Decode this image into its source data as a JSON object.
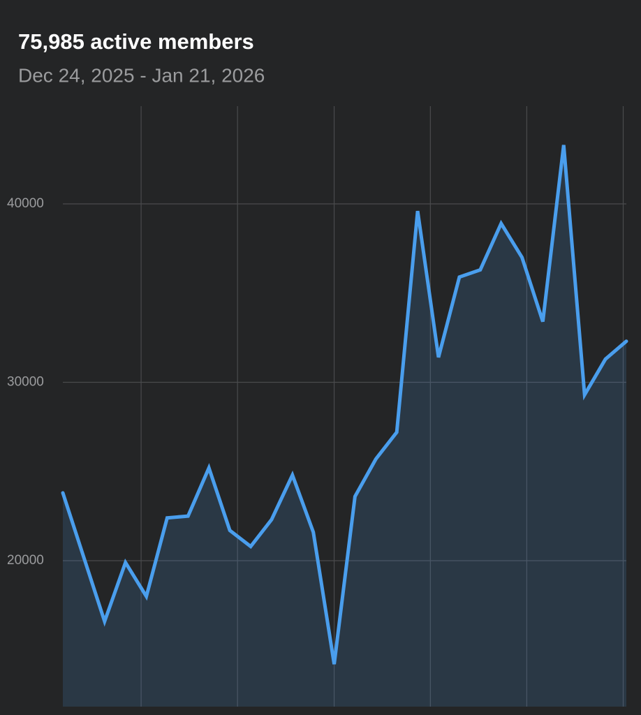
{
  "chart_data": {
    "type": "line",
    "title": "75,985 active members",
    "subtitle": "Dec 24, 2025 - Jan 21, 2026",
    "x": [
      0,
      1,
      2,
      3,
      4,
      5,
      6,
      7,
      8,
      9,
      10,
      11,
      12,
      13,
      14,
      15,
      16,
      17,
      18,
      19,
      20,
      21,
      22,
      23,
      24,
      25,
      26,
      27
    ],
    "xlim": [
      0,
      27
    ],
    "xticks": [
      3.75,
      8.37,
      13,
      17.61,
      22.23,
      26.85
    ],
    "series": [
      {
        "name": "active members",
        "color": "#4a9eed",
        "values": [
          23800,
          20200,
          16600,
          19900,
          18000,
          22400,
          22500,
          25200,
          21700,
          20800,
          22300,
          24800,
          21600,
          14200,
          23600,
          25700,
          27200,
          39600,
          31400,
          35900,
          36300,
          38900,
          37000,
          33400,
          43300,
          29300,
          31300,
          32300
        ]
      }
    ],
    "ylim": [
      11820,
      45480
    ],
    "yticks": [
      20000,
      30000,
      40000
    ],
    "grid": true,
    "area": true
  }
}
